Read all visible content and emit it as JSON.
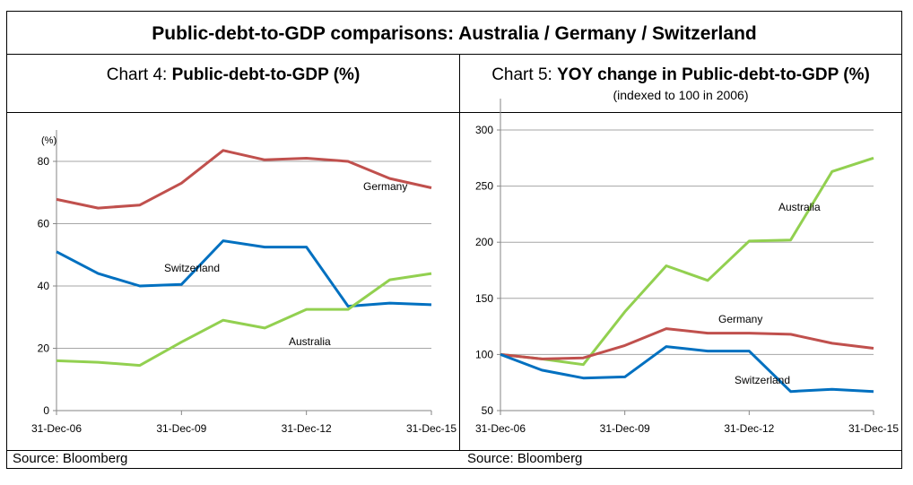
{
  "header": {
    "title": "Public-debt-to-GDP comparisons: Australia / Germany / Switzerland"
  },
  "colors": {
    "Germany": "#c0504d",
    "Switzerland": "#0070c0",
    "Australia": "#92d050",
    "grid": "#a6a6a6"
  },
  "chart_data": [
    {
      "type": "line",
      "prefix": "Chart 4: ",
      "title": "Public-debt-to-GDP (%)",
      "subtitle": "",
      "ylabel": "(%)",
      "source": "Source: Bloomberg",
      "x": [
        "31-Dec-06",
        "31-Dec-07",
        "31-Dec-08",
        "31-Dec-09",
        "31-Dec-10",
        "31-Dec-11",
        "31-Dec-12",
        "31-Dec-13",
        "31-Dec-14",
        "31-Dec-15"
      ],
      "x_ticks": [
        "31-Dec-06",
        "31-Dec-09",
        "31-Dec-12",
        "31-Dec-15"
      ],
      "y_ticks": [
        0,
        20,
        40,
        60,
        80
      ],
      "ylim": [
        0,
        80
      ],
      "grid": true,
      "series": [
        {
          "name": "Germany",
          "values": [
            67.8,
            65,
            66,
            73,
            83.5,
            80.5,
            81,
            80,
            74.5,
            71.5
          ]
        },
        {
          "name": "Switzerland",
          "values": [
            51,
            44,
            40,
            40.5,
            54.5,
            52.5,
            52.5,
            33.5,
            34.5,
            34
          ]
        },
        {
          "name": "Australia",
          "values": [
            16,
            15.5,
            14.5,
            22,
            29,
            26.5,
            32.5,
            32.5,
            42,
            44
          ]
        }
      ]
    },
    {
      "type": "line",
      "prefix": "Chart 5: ",
      "title": "YOY change in Public-debt-to-GDP (%)",
      "subtitle": "(indexed to 100 in 2006)",
      "ylabel": "",
      "source": "Source: Bloomberg",
      "x": [
        "31-Dec-06",
        "31-Dec-07",
        "31-Dec-08",
        "31-Dec-09",
        "31-Dec-10",
        "31-Dec-11",
        "31-Dec-12",
        "31-Dec-13",
        "31-Dec-14",
        "31-Dec-15"
      ],
      "x_ticks": [
        "31-Dec-06",
        "31-Dec-09",
        "31-Dec-12",
        "31-Dec-15"
      ],
      "y_ticks": [
        50,
        100,
        150,
        200,
        250,
        300
      ],
      "ylim": [
        50,
        300
      ],
      "grid": true,
      "series": [
        {
          "name": "Australia",
          "values": [
            100,
            96,
            91,
            138,
            179,
            166,
            201,
            202,
            263,
            275
          ]
        },
        {
          "name": "Germany",
          "values": [
            100,
            96,
            97,
            108,
            123,
            119,
            119,
            118,
            110,
            105.5
          ]
        },
        {
          "name": "Switzerland",
          "values": [
            100,
            86,
            79,
            80,
            107,
            103,
            103,
            67,
            69,
            67
          ]
        }
      ]
    }
  ]
}
